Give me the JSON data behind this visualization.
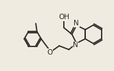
{
  "bg_color": "#f0ebe0",
  "bond_color": "#2a2a2a",
  "atom_color": "#2a2a2a",
  "line_width": 1.3,
  "font_size": 7.0,
  "figsize": [
    1.66,
    1.04
  ],
  "dpi": 100,
  "xlim": [
    0,
    10
  ],
  "ylim": [
    0,
    6.2
  ]
}
